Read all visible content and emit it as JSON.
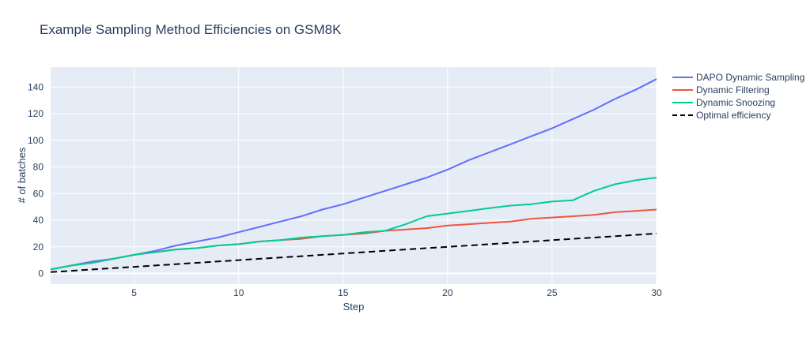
{
  "chart_data": {
    "type": "line",
    "title": "Example Sampling Method Efficiencies on GSM8K",
    "xlabel": "Step",
    "ylabel": "# of batches",
    "xlim": [
      1,
      30
    ],
    "ylim": [
      -8,
      155
    ],
    "x_ticks": [
      5,
      10,
      15,
      20,
      25,
      30
    ],
    "y_ticks": [
      0,
      20,
      40,
      60,
      80,
      100,
      120,
      140
    ],
    "grid": true,
    "background_color": "#e5ecf6",
    "legend_position": "top-right",
    "x": [
      1,
      2,
      3,
      4,
      5,
      6,
      7,
      8,
      9,
      10,
      11,
      12,
      13,
      14,
      15,
      16,
      17,
      18,
      19,
      20,
      21,
      22,
      23,
      24,
      25,
      26,
      27,
      28,
      29,
      30
    ],
    "series": [
      {
        "name": "DAPO Dynamic Sampling",
        "color": "#636efa",
        "dash": "solid",
        "values": [
          3,
          6,
          9,
          11,
          14,
          17,
          21,
          24,
          27,
          31,
          35,
          39,
          43,
          48,
          52,
          57,
          62,
          67,
          72,
          78,
          85,
          91,
          97,
          103,
          109,
          116,
          123,
          131,
          138,
          146
        ]
      },
      {
        "name": "Dynamic Filtering",
        "color": "#ef553b",
        "dash": "solid",
        "values": [
          3,
          6,
          8,
          11,
          14,
          16,
          18,
          19,
          21,
          22,
          24,
          25,
          26,
          28,
          29,
          30,
          32,
          33,
          34,
          36,
          37,
          38,
          39,
          41,
          42,
          43,
          44,
          46,
          47,
          48
        ]
      },
      {
        "name": "Dynamic Snoozing",
        "color": "#00cc96",
        "dash": "solid",
        "values": [
          3,
          6,
          8,
          11,
          14,
          16,
          18,
          19,
          21,
          22,
          24,
          25,
          27,
          28,
          29,
          31,
          32,
          37,
          43,
          45,
          47,
          49,
          51,
          52,
          54,
          55,
          62,
          67,
          70,
          72
        ]
      },
      {
        "name": "Optimal efficiency",
        "color": "#000000",
        "dash": "dash",
        "values": [
          1,
          2,
          3,
          4,
          5,
          6,
          7,
          8,
          9,
          10,
          11,
          12,
          13,
          14,
          15,
          16,
          17,
          18,
          19,
          20,
          21,
          22,
          23,
          24,
          25,
          26,
          27,
          28,
          29,
          30
        ]
      }
    ]
  }
}
